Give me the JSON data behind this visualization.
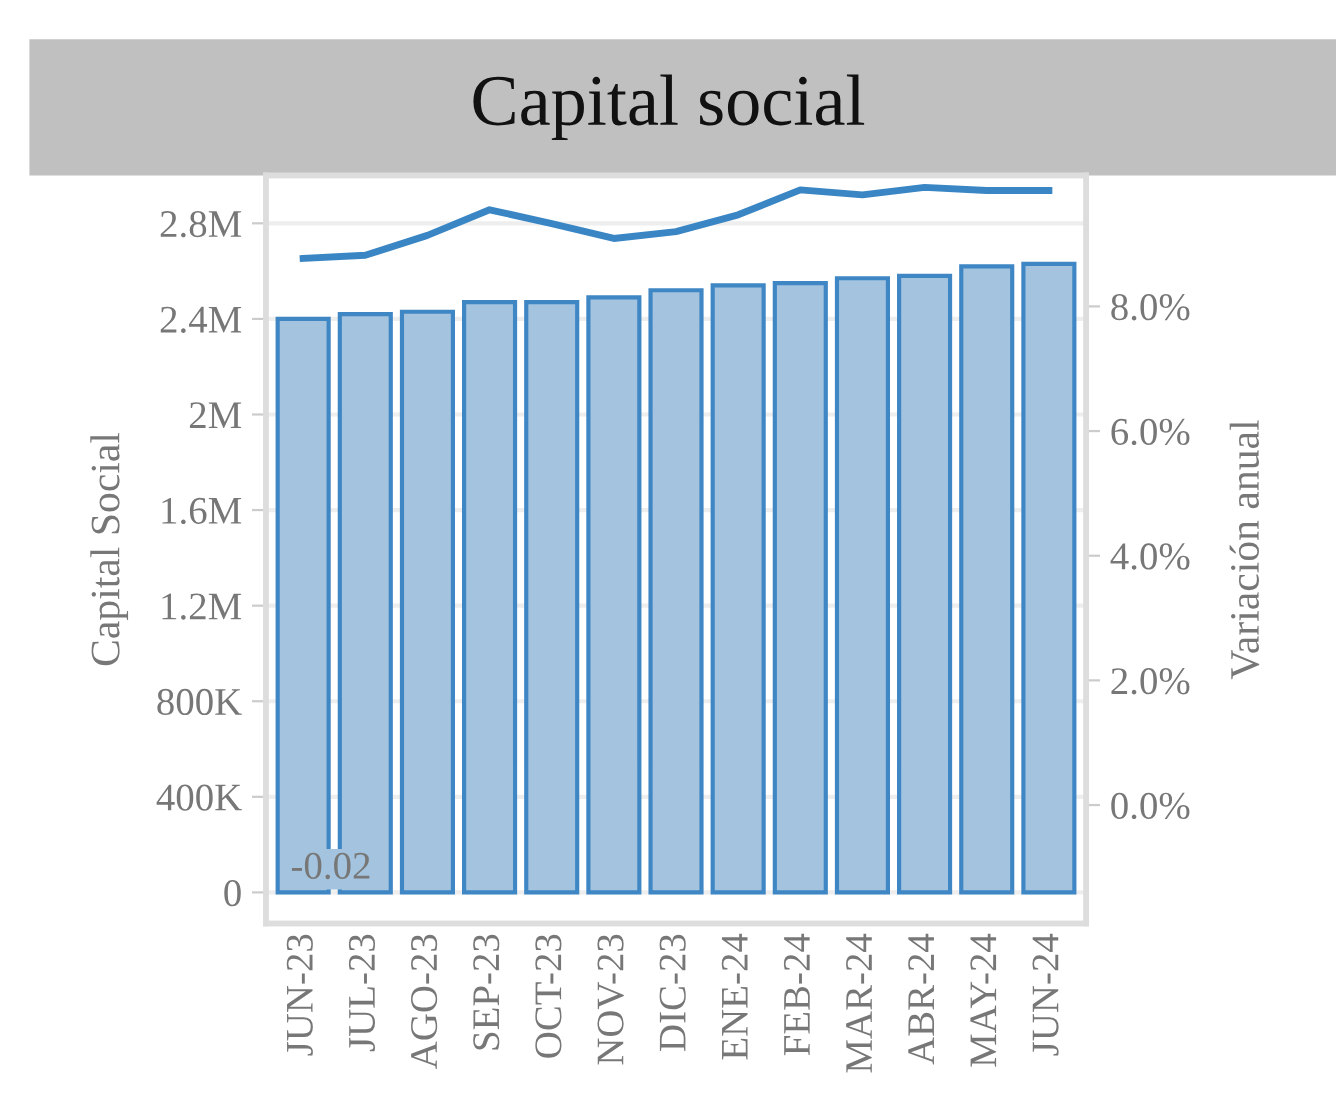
{
  "chart_data": {
    "type": "bar",
    "title": "Capital social",
    "ylabel": "Capital Social",
    "y2label": "Variación anual",
    "categories": [
      "JUN-23",
      "JUL-23",
      "AGO-23",
      "SEP-23",
      "OCT-23",
      "NOV-23",
      "DIC-23",
      "ENE-24",
      "FEB-24",
      "MAR-24",
      "ABR-24",
      "MAY-24",
      "JUN-24"
    ],
    "series": [
      {
        "color": "#a3c3de",
        "values": [
          2400000,
          2420000,
          2430000,
          2470000,
          2470000,
          2490000,
          2520000,
          2540000,
          2550000,
          2570000,
          2580000,
          2620000,
          2630000
        ]
      },
      {
        "type": "line",
        "axis": "y2",
        "color": "#3a86c4",
        "values": [
          8.77,
          8.82,
          9.14,
          9.55,
          9.33,
          9.09,
          9.2,
          9.47,
          9.87,
          9.79,
          9.91,
          9.86,
          9.86
        ]
      }
    ],
    "ylim": [
      -130000,
      3000000
    ],
    "yticks": [
      {
        "value": 0,
        "label": "0"
      },
      {
        "value": 400000,
        "label": "400K"
      },
      {
        "value": 800000,
        "label": "800K"
      },
      {
        "value": 1200000,
        "label": "1.2M"
      },
      {
        "value": 1600000,
        "label": "1.6M"
      },
      {
        "value": 2000000,
        "label": "2M"
      },
      {
        "value": 2400000,
        "label": "2.4M"
      },
      {
        "value": 2800000,
        "label": "2.8M"
      }
    ],
    "y2lim": [
      -1.9,
      10.1
    ],
    "y2ticks": [
      {
        "value": 0,
        "label": "0.0%"
      },
      {
        "value": 2,
        "label": "2.0%"
      },
      {
        "value": 4,
        "label": "4.0%"
      },
      {
        "value": 6,
        "label": "6.0%"
      },
      {
        "value": 8,
        "label": "8.0%"
      }
    ],
    "grid": "y",
    "line_style": "solid",
    "marker": "none",
    "annotations": [
      "-0.02"
    ]
  }
}
